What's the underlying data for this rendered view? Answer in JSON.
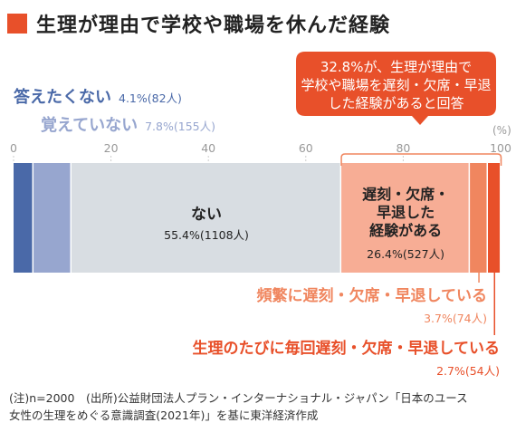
{
  "title": "生理が理由で学校や職場を休んだ経験",
  "chart_data": {
    "type": "bar",
    "orientation": "horizontal-stacked-100",
    "xlim": [
      0,
      100
    ],
    "unit_label": "(%)",
    "ticks": [
      0,
      20,
      40,
      60,
      80,
      100
    ],
    "segments": [
      {
        "name": "答えたくない",
        "value": 4.1,
        "count_label": "4.1%(82人)",
        "color": "#4a69a8"
      },
      {
        "name": "覚えていない",
        "value": 7.8,
        "count_label": "7.8%(155人)",
        "color": "#97a6cf"
      },
      {
        "name": "ない",
        "value": 55.4,
        "count_label": "55.4%(1108人)",
        "color": "#d8dde2"
      },
      {
        "name": "遅刻・欠席・早退した経験がある",
        "value": 26.4,
        "count_label": "26.4%(527人)",
        "color": "#f7ad95"
      },
      {
        "name": "頻繁に遅刻・欠席・早退している",
        "value": 3.7,
        "count_label": "3.7%(74人)",
        "color": "#f0865f"
      },
      {
        "name": "生理のたびに毎回遅刻・欠席・早退している",
        "value": 2.7,
        "count_label": "2.7%(54人)",
        "color": "#e8502a"
      }
    ],
    "bar_labels": {
      "none_name": "ない",
      "experience_lines": [
        "遅刻・欠席・",
        "早退した",
        "経験がある"
      ]
    },
    "callout": {
      "lines": [
        "32.8%が、生理が理由で",
        "学校や職場を遅刻・欠席・早退",
        "した経験があると回答"
      ],
      "color": "#e8502a"
    }
  },
  "footnote": {
    "line1": "(注)n=2000　(出所)公益財団法人プラン・インターナショナル・ジャパン「日本のユース",
    "line2": "女性の生理をめぐる意識調査(2021年)」を基に東洋経済作成"
  },
  "colors": {
    "accent": "#e8502a",
    "bracket": "#f0865f",
    "tick_text": "#999999",
    "grid": "#cccccc"
  }
}
